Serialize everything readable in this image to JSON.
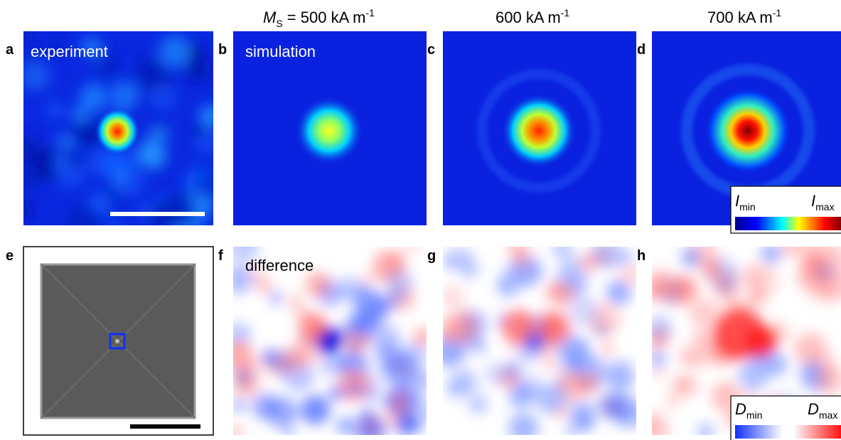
{
  "columns": [
    {
      "symbol": "M",
      "subscript": "S",
      "text": " = 500 kA m",
      "superscript": "-1"
    },
    {
      "text": "600 kA m",
      "superscript": "-1"
    },
    {
      "text": "700 kA m",
      "superscript": "-1"
    }
  ],
  "panels": [
    {
      "letter": "a",
      "label": "experiment"
    },
    {
      "letter": "b",
      "label": "simulation"
    },
    {
      "letter": "c"
    },
    {
      "letter": "d"
    },
    {
      "letter": "e"
    },
    {
      "letter": "f",
      "label": "difference"
    },
    {
      "letter": "g"
    },
    {
      "letter": "h"
    }
  ],
  "colorbars": [
    {
      "low": {
        "symbol": "I",
        "subscript": "min"
      },
      "high": {
        "symbol": "I",
        "subscript": "max"
      }
    },
    {
      "low": {
        "symbol": "D",
        "subscript": "min"
      },
      "high": {
        "symbol": "D",
        "subscript": "max"
      }
    }
  ]
}
